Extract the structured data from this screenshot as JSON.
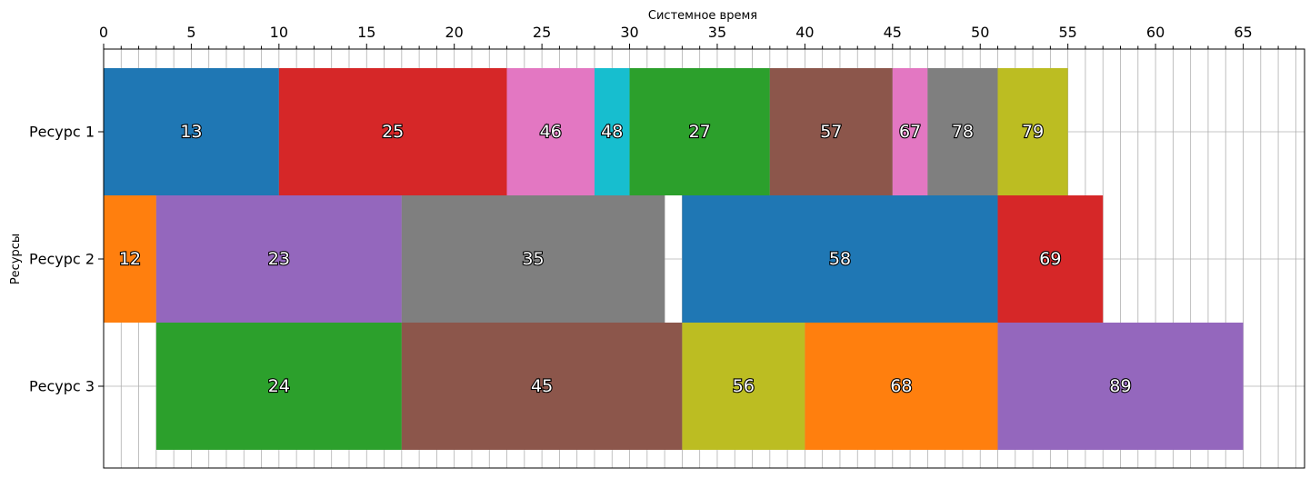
{
  "chart_data": {
    "type": "gantt",
    "xlabel": "Системное время",
    "ylabel": "Ресурсы",
    "xlim": [
      0,
      68.5
    ],
    "xticks_major": [
      0,
      5,
      10,
      15,
      20,
      25,
      30,
      35,
      40,
      45,
      50,
      55,
      60,
      65
    ],
    "xticks_minor_step": 1,
    "x_axis_position": "top",
    "grid": true,
    "resources": [
      "Ресурс 1",
      "Ресурс 2",
      "Ресурс 3"
    ],
    "colors": {
      "blue": "#1f77b4",
      "orange": "#ff7f0e",
      "green": "#2ca02c",
      "red": "#d62728",
      "purple": "#9467bd",
      "brown": "#8c564b",
      "pink": "#e377c2",
      "gray": "#7f7f7f",
      "olive": "#bcbd22",
      "cyan": "#17becf"
    },
    "tasks": [
      {
        "resource": 0,
        "label": "13",
        "start": 0,
        "end": 10,
        "color": "#1f77b4"
      },
      {
        "resource": 0,
        "label": "25",
        "start": 10,
        "end": 23,
        "color": "#d62728"
      },
      {
        "resource": 0,
        "label": "46",
        "start": 23,
        "end": 28,
        "color": "#e377c2"
      },
      {
        "resource": 0,
        "label": "48",
        "start": 28,
        "end": 30,
        "color": "#17becf"
      },
      {
        "resource": 0,
        "label": "27",
        "start": 30,
        "end": 38,
        "color": "#2ca02c"
      },
      {
        "resource": 0,
        "label": "57",
        "start": 38,
        "end": 45,
        "color": "#8c564b"
      },
      {
        "resource": 0,
        "label": "67",
        "start": 45,
        "end": 47,
        "color": "#e377c2"
      },
      {
        "resource": 0,
        "label": "78",
        "start": 47,
        "end": 51,
        "color": "#7f7f7f"
      },
      {
        "resource": 0,
        "label": "79",
        "start": 51,
        "end": 55,
        "color": "#bcbd22"
      },
      {
        "resource": 1,
        "label": "12",
        "start": 0,
        "end": 3,
        "color": "#ff7f0e"
      },
      {
        "resource": 1,
        "label": "23",
        "start": 3,
        "end": 17,
        "color": "#9467bd"
      },
      {
        "resource": 1,
        "label": "35",
        "start": 17,
        "end": 32,
        "color": "#7f7f7f"
      },
      {
        "resource": 1,
        "label": "58",
        "start": 33,
        "end": 51,
        "color": "#1f77b4"
      },
      {
        "resource": 1,
        "label": "69",
        "start": 51,
        "end": 57,
        "color": "#d62728"
      },
      {
        "resource": 2,
        "label": "24",
        "start": 3,
        "end": 17,
        "color": "#2ca02c"
      },
      {
        "resource": 2,
        "label": "45",
        "start": 17,
        "end": 33,
        "color": "#8c564b"
      },
      {
        "resource": 2,
        "label": "56",
        "start": 33,
        "end": 40,
        "color": "#bcbd22"
      },
      {
        "resource": 2,
        "label": "68",
        "start": 40,
        "end": 51,
        "color": "#ff7f0e"
      },
      {
        "resource": 2,
        "label": "89",
        "start": 51,
        "end": 65,
        "color": "#9467bd"
      }
    ]
  }
}
